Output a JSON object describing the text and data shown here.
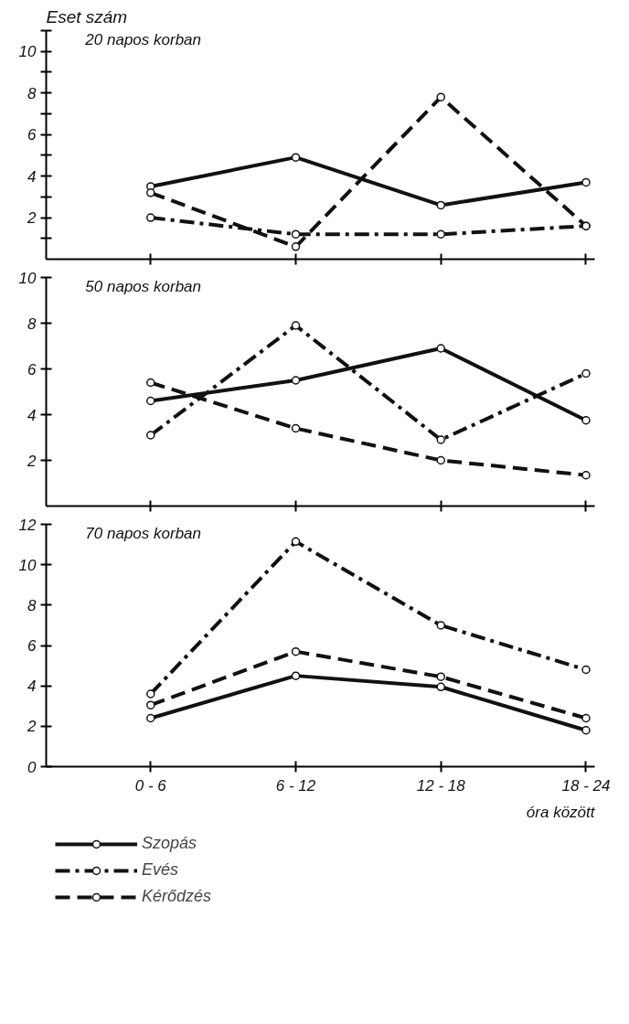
{
  "chart_data": [
    {
      "type": "line",
      "title": "20 napos korban",
      "ylabel": "Eset szám",
      "categories": [
        null,
        null,
        null,
        null
      ],
      "ylim": [
        0,
        11
      ],
      "yticks": [
        {
          "value": 1,
          "label": null
        },
        2,
        {
          "value": 3,
          "label": null
        },
        4,
        {
          "value": 5,
          "label": null
        },
        6,
        {
          "value": 7,
          "label": null
        },
        8,
        {
          "value": 9,
          "label": null
        },
        10,
        {
          "value": 11,
          "label": null
        }
      ],
      "tick_labels": "y",
      "marker": "circle",
      "grid": false,
      "series": [
        {
          "color": "#111111",
          "line_style": "solid",
          "values": [
            3.5,
            4.9,
            2.6,
            3.7
          ]
        },
        {
          "color": "#111111",
          "line_style": "dashdot",
          "values": [
            2.0,
            1.2,
            1.2,
            1.6
          ]
        },
        {
          "color": "#111111",
          "line_style": "dashed",
          "values": [
            3.2,
            0.6,
            7.8,
            1.6
          ]
        }
      ]
    },
    {
      "type": "line",
      "title": "50 napos korban",
      "categories": [
        null,
        null,
        null,
        null
      ],
      "ylim": [
        0,
        10
      ],
      "yticks": [
        2,
        4,
        6,
        8,
        10
      ],
      "tick_labels": "y",
      "marker": "circle",
      "grid": false,
      "series": [
        {
          "color": "#111111",
          "line_style": "solid",
          "values": [
            4.6,
            5.5,
            6.9,
            3.75
          ]
        },
        {
          "color": "#111111",
          "line_style": "dashdot",
          "values": [
            3.1,
            7.9,
            2.9,
            5.8
          ]
        },
        {
          "color": "#111111",
          "line_style": "dashed",
          "values": [
            5.4,
            3.4,
            2.0,
            1.35
          ]
        }
      ]
    },
    {
      "type": "line",
      "title": "70 napos korban",
      "xlabel": "óra között",
      "categories": [
        "0 - 6",
        "6 - 12",
        "12 - 18",
        "18 - 24"
      ],
      "ylim": [
        0,
        12
      ],
      "yticks": [
        0,
        2,
        4,
        6,
        8,
        10,
        12
      ],
      "marker": "circle",
      "grid": false,
      "legend": "bottom left",
      "series": [
        {
          "name": "Szopás",
          "color": "#111111",
          "line_style": "solid",
          "values": [
            2.4,
            4.5,
            3.95,
            1.8
          ]
        },
        {
          "name": "Evés",
          "color": "#111111",
          "line_style": "dashdot",
          "values": [
            3.6,
            11.15,
            7.0,
            4.8
          ]
        },
        {
          "name": "Kérődzés",
          "color": "#111111",
          "line_style": "dashed",
          "values": [
            3.05,
            5.7,
            4.45,
            2.4
          ]
        }
      ]
    }
  ]
}
